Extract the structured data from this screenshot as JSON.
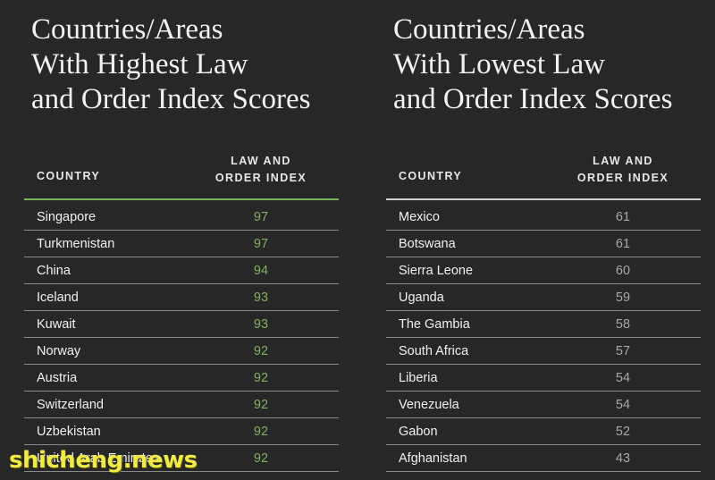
{
  "chart_data": [
    {
      "type": "table",
      "title_lines": [
        "Countries/Areas",
        "With Highest Law",
        "and Order Index Scores"
      ],
      "columns": {
        "country": "COUNTRY",
        "index_lines": [
          "LAW AND",
          "ORDER INDEX"
        ]
      },
      "categories": [
        "Singapore",
        "Turkmenistan",
        "China",
        "Iceland",
        "Kuwait",
        "Norway",
        "Austria",
        "Switzerland",
        "Uzbekistan",
        "United Arab Emirates"
      ],
      "values": [
        97,
        97,
        94,
        93,
        93,
        92,
        92,
        92,
        92,
        92
      ],
      "colors": {
        "value": "#7fb061",
        "rule": "#79b15c"
      }
    },
    {
      "type": "table",
      "title_lines": [
        "Countries/Areas",
        "With Lowest Law",
        "and Order Index Scores"
      ],
      "columns": {
        "country": "COUNTRY",
        "index_lines": [
          "LAW AND",
          "ORDER INDEX"
        ]
      },
      "categories": [
        "Mexico",
        "Botswana",
        "Sierra Leone",
        "Uganda",
        "The Gambia",
        "South Africa",
        "Liberia",
        "Venezuela",
        "Gabon",
        "Afghanistan"
      ],
      "values": [
        61,
        61,
        60,
        59,
        58,
        57,
        54,
        54,
        52,
        43
      ],
      "colors": {
        "value": "#a8a8a8",
        "rule": "#cfcfcf"
      }
    }
  ],
  "watermark": "shicheng.news"
}
